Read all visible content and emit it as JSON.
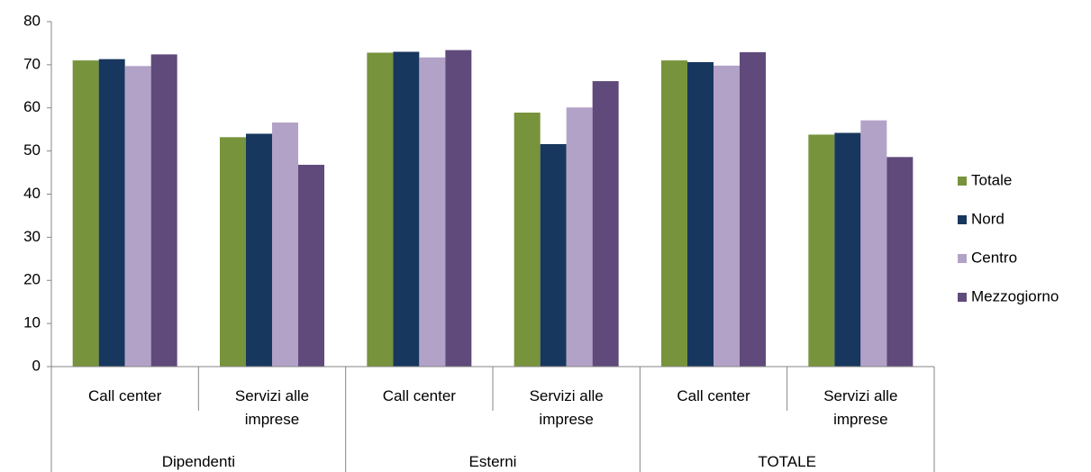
{
  "chart_data": {
    "type": "bar",
    "categories": [
      "Call center",
      "Servizi alle imprese",
      "Call center",
      "Servizi alle imprese",
      "Call center",
      "Servizi alle imprese"
    ],
    "groups": [
      "Dipendenti",
      "Esterni",
      "TOTALE"
    ],
    "series": [
      {
        "name": "Totale",
        "color": "#77933c",
        "values": [
          71,
          53.2,
          72.8,
          58.9,
          71,
          53.8
        ]
      },
      {
        "name": "Nord",
        "color": "#17375e",
        "values": [
          71.3,
          54,
          73,
          51.6,
          70.6,
          54.2
        ]
      },
      {
        "name": "Centro",
        "color": "#b3a2c7",
        "values": [
          69.7,
          56.6,
          71.7,
          60.1,
          69.8,
          57.1
        ]
      },
      {
        "name": "Mezzogiorno",
        "color": "#604a7b",
        "values": [
          72.4,
          46.8,
          73.4,
          66.2,
          72.9,
          48.6
        ]
      }
    ],
    "ylim": [
      0,
      80
    ],
    "yticks": [
      0,
      10,
      20,
      30,
      40,
      50,
      60,
      70,
      80
    ],
    "grid": false,
    "legend": "right"
  }
}
